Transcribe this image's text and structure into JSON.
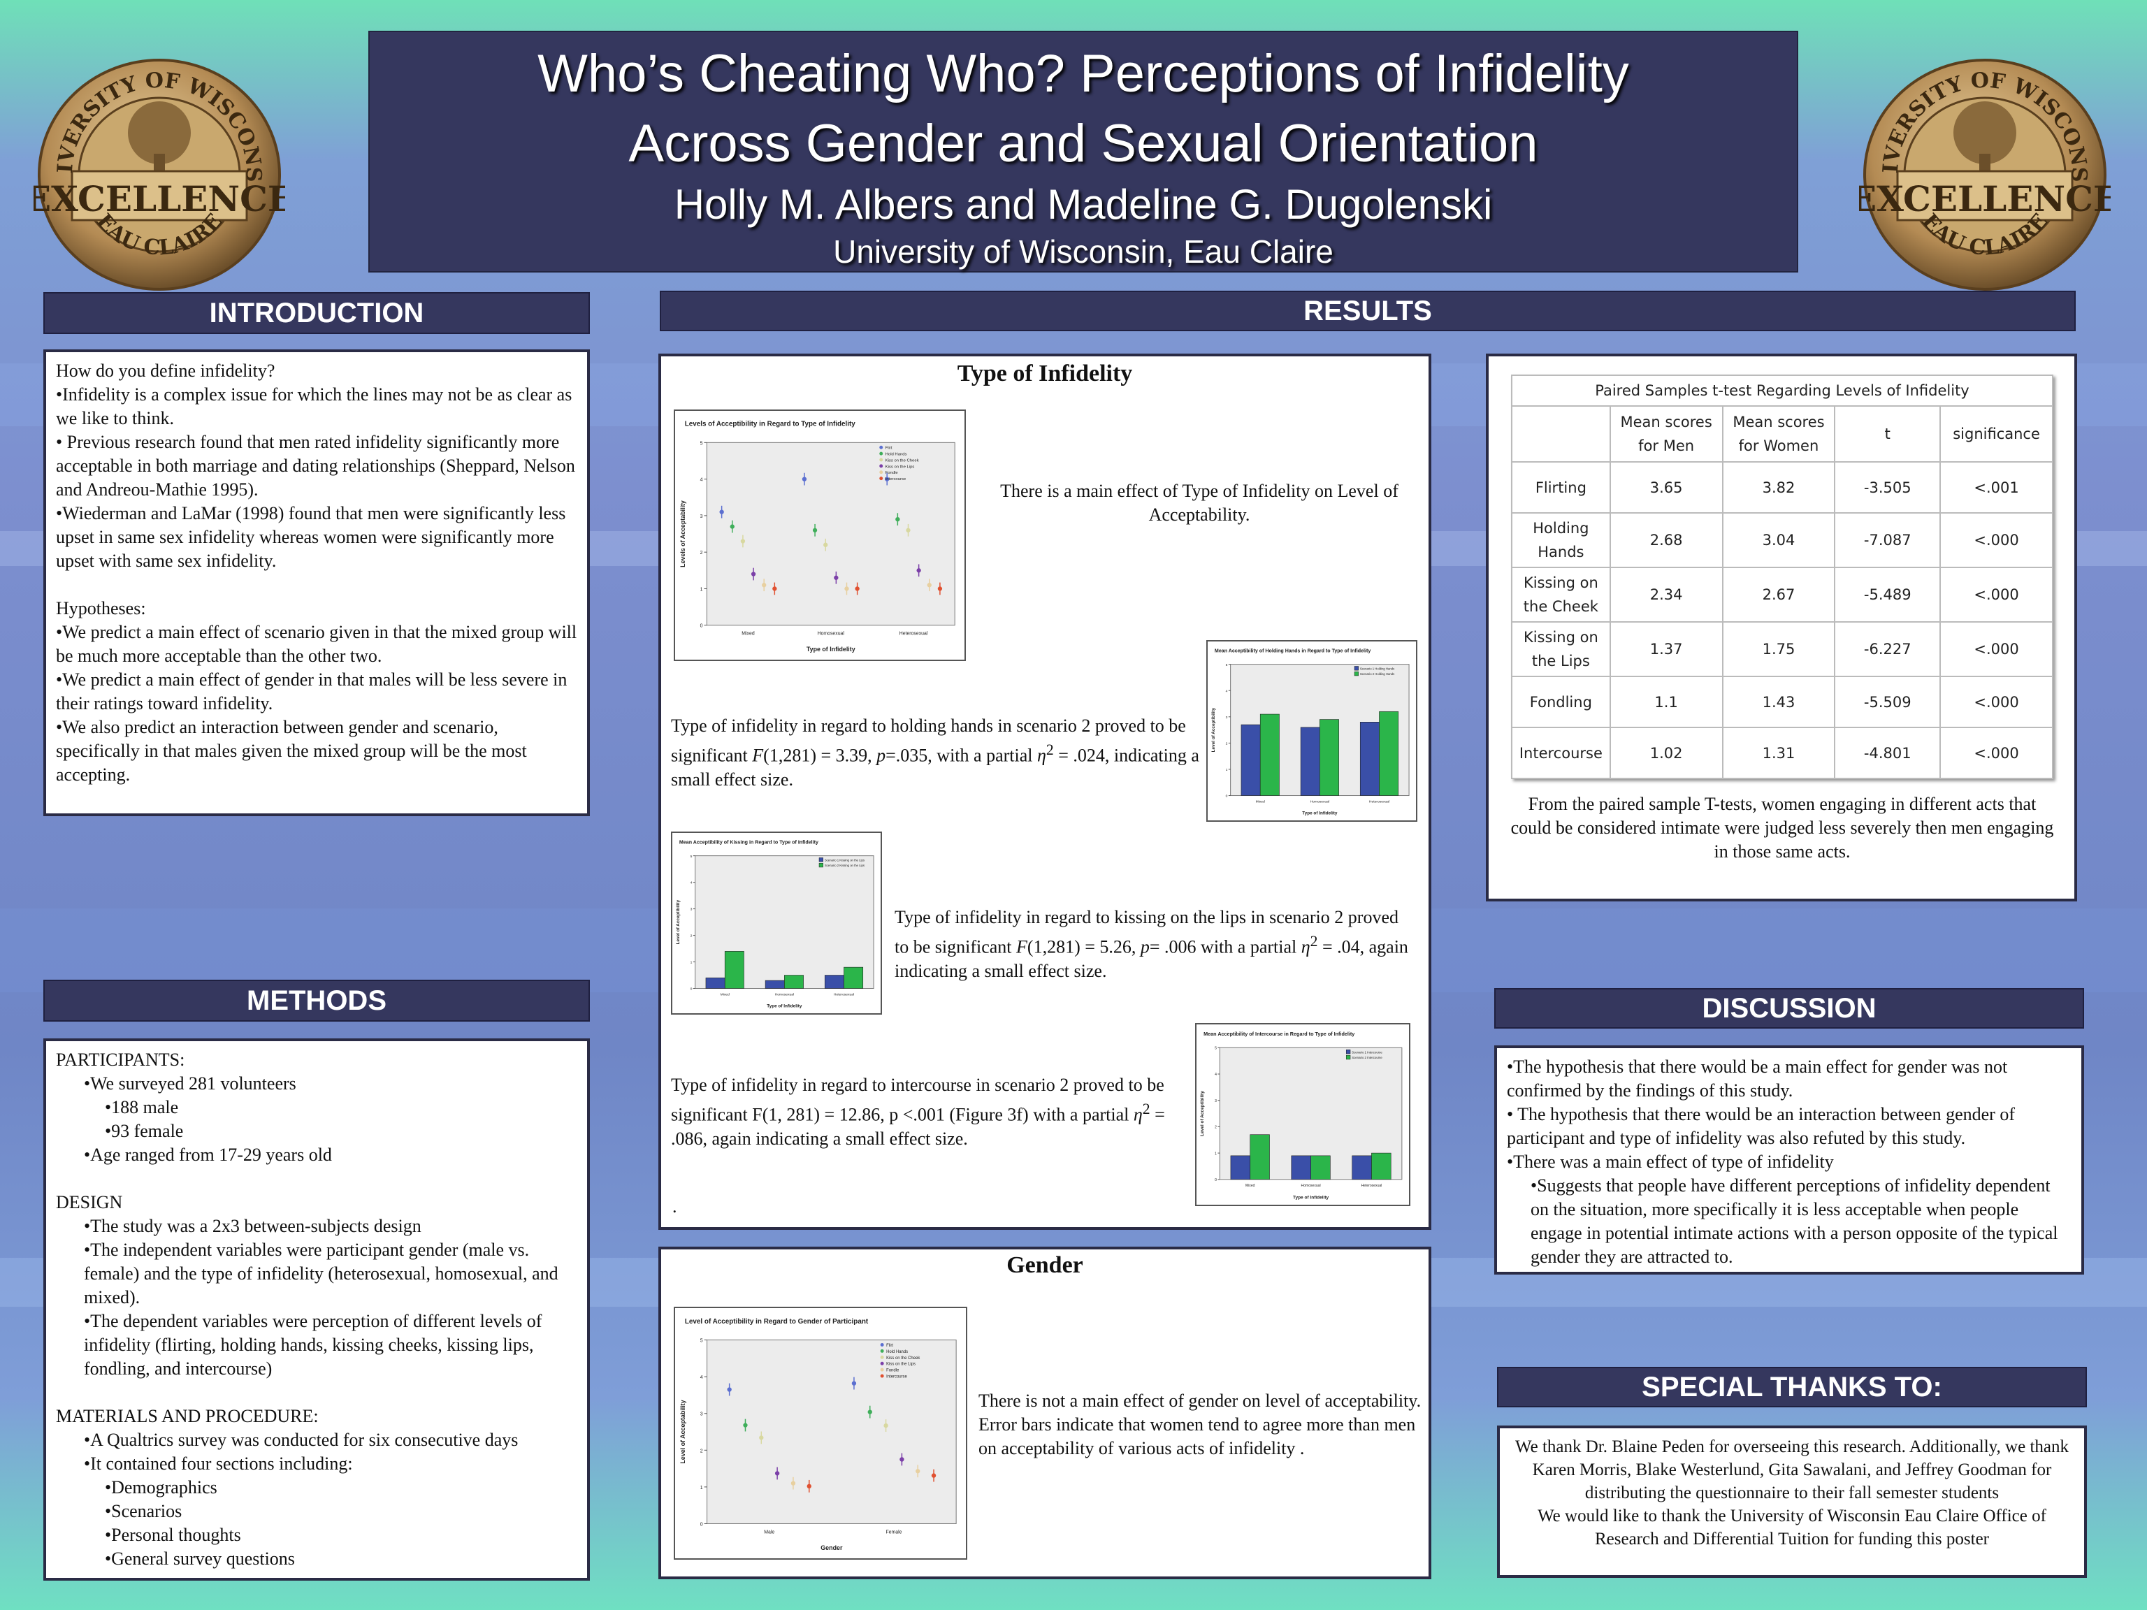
{
  "header": {
    "title_line1": "Who’s Cheating Who? Perceptions of Infidelity",
    "title_line2": "Across Gender and Sexual Orientation",
    "authors": "Holly M. Albers and Madeline G. Dugolenski",
    "institution": "University of Wisconsin, Eau Claire",
    "seal": {
      "top": "UNIVERSITY OF WISCONSIN",
      "middle": "EXCELLENCE",
      "bottom": "EAU CLAIRE"
    }
  },
  "colors": {
    "header_bg": "#35375e",
    "bar_blue": "#3a4fa8",
    "bar_green": "#2bb54a"
  },
  "introduction": {
    "heading": "INTRODUCTION",
    "lines": [
      "How do you define infidelity?",
      "•Infidelity is a complex issue for which the lines may not be as clear as we like to think.",
      "• Previous research found that men rated infidelity significantly more acceptable in both marriage and dating relationships (Sheppard, Nelson and Andreou-Mathie 1995).",
      "•Wiederman and LaMar (1998) found that men were significantly less upset in same sex infidelity whereas women were significantly more upset with same sex infidelity.",
      "",
      "Hypotheses:",
      "•We predict a main effect of scenario given in that the mixed group will be much more acceptable than the other two.",
      "•We predict a main effect of gender in that males will be less severe in their ratings toward infidelity.",
      "•We also predict an interaction between gender and scenario, specifically in that males given the mixed group will be the most accepting."
    ]
  },
  "methods": {
    "heading": "METHODS",
    "participants_title": "PARTICIPANTS:",
    "surveyed": "•We surveyed 281 volunteers",
    "male": "•188 male",
    "female": "•93 female",
    "age": "•Age ranged from 17-29 years old",
    "design_title": "DESIGN",
    "design_1": "•The study was a 2x3 between-subjects design",
    "design_2": "•The independent variables were participant gender (male vs. female) and the type of infidelity (heterosexual, homosexual, and mixed).",
    "design_3": "•The dependent variables were perception of different levels of infidelity (flirting, holding hands, kissing cheeks, kissing lips, fondling, and intercourse)",
    "materials_title": "MATERIALS AND PROCEDURE:",
    "materials_1": "•A Qualtrics survey was conducted for six consecutive days",
    "materials_2": "•It contained four sections including:",
    "sections": [
      "•Demographics",
      "•Scenarios",
      "•Personal thoughts",
      "•General survey questions"
    ]
  },
  "results": {
    "heading": "RESULTS",
    "type_title": "Type of Infidelity",
    "main_effect": "There is a main effect of Type of Infidelity on Level of Acceptability.",
    "holding_text_a": "Type of infidelity  in regard to holding hands in scenario 2 proved to be significant ",
    "holding_F": "F",
    "holding_text_b": "(1,281) = 3.39, ",
    "holding_p": "p",
    "holding_text_c": "=.035, with a partial ",
    "holding_eta": "η",
    "holding_text_d": " = .024, indicating a small effect size.",
    "kissing_text_a": "Type of infidelity in regard to kissing on the lips in scenario 2 proved to be significant  ",
    "kissing_F": "F",
    "kissing_text_b": "(1,281) = 5.26, ",
    "kissing_p": "p",
    "kissing_text_c": "= .006 with a partial ",
    "kissing_eta": "η",
    "kissing_text_d": " = .04, again indicating a small effect size.",
    "intercourse_text_a": "Type of infidelity in regard to intercourse in scenario 2 proved to be significant F(1, 281) = 12.86, p <.001 (Figure 3f) with a partial ",
    "intercourse_eta": "η",
    "intercourse_text_b": " = .086, again indicating a small effect size.",
    "dot": ".",
    "sup2": "2",
    "gender_title": "Gender",
    "gender_text": "There is not a main effect of  gender on level of acceptability. Error bars indicate that women tend to agree more than men on acceptability of various acts of infidelity ."
  },
  "chart_data": [
    {
      "type": "scatter",
      "title": "Levels of Acceptibility in Regard to Type of Infidelity",
      "xlabel": "Type of Infidelity",
      "ylabel": "Levels of Acceptability",
      "categories": [
        "Mixed",
        "Homosexual",
        "Heterosexual"
      ],
      "legend": [
        "Flirt",
        "Hold Hands",
        "Kiss on the Cheek",
        "Kiss on the Lips",
        "Fondle",
        "Intercourse"
      ],
      "legend_position": "top-right",
      "ylim": [
        0,
        5
      ],
      "series": [
        {
          "name": "Flirt",
          "values": [
            3.1,
            4.0,
            4.0
          ],
          "color": "#5b6fd0"
        },
        {
          "name": "Hold Hands",
          "values": [
            2.7,
            2.6,
            2.9
          ],
          "color": "#3fae5a"
        },
        {
          "name": "Kiss on the Cheek",
          "values": [
            2.3,
            2.2,
            2.6
          ],
          "color": "#d8d8a0"
        },
        {
          "name": "Kiss on the Lips",
          "values": [
            1.4,
            1.3,
            1.5
          ],
          "color": "#7b3fa8"
        },
        {
          "name": "Fondle",
          "values": [
            1.1,
            1.0,
            1.1
          ],
          "color": "#e8d0a0"
        },
        {
          "name": "Intercourse",
          "values": [
            1.0,
            1.0,
            1.0
          ],
          "color": "#e05030"
        }
      ]
    },
    {
      "type": "bar",
      "title": "Mean Acceptibility of Holding Hands in Regard to Type of Infidelity",
      "xlabel": "Type of Infidelity",
      "ylabel": "Level of Acceptibility",
      "categories": [
        "Mixed",
        "Homosexual",
        "Heterosexual"
      ],
      "ylim": [
        0,
        5
      ],
      "legend_position": "top-right",
      "series": [
        {
          "name": "Scenario 1 Holding Hands",
          "values": [
            2.7,
            2.6,
            2.8
          ],
          "color": "#3a4fa8"
        },
        {
          "name": "Scenario 2 Holding Hands",
          "values": [
            3.1,
            2.9,
            3.2
          ],
          "color": "#2bb54a"
        }
      ]
    },
    {
      "type": "bar",
      "title": "Mean Acceptibility of Kissing in Regard to Type of Infidelity",
      "xlabel": "Type of Infidelity",
      "ylabel": "Level of Acceptibility",
      "categories": [
        "Mixed",
        "Homosexual",
        "Heterosexual"
      ],
      "ylim": [
        0,
        5
      ],
      "legend_position": "top-right",
      "series": [
        {
          "name": "Scenario 1 Kissing on the Lips",
          "values": [
            0.4,
            0.3,
            0.5
          ],
          "color": "#3a4fa8"
        },
        {
          "name": "Scenario 2 Kissing on the Lips",
          "values": [
            1.4,
            0.5,
            0.8
          ],
          "color": "#2bb54a"
        }
      ]
    },
    {
      "type": "bar",
      "title": "Mean Acceptibility of Intercourse in Regard to Type of Infidelity",
      "xlabel": "Type of Infidelity",
      "ylabel": "Level of Acceptibility",
      "categories": [
        "Mixed",
        "Homosexual",
        "Heterosexual"
      ],
      "ylim": [
        0,
        5
      ],
      "legend_position": "top-right",
      "series": [
        {
          "name": "Scenario 1 Intercourse",
          "values": [
            0.9,
            0.9,
            0.9
          ],
          "color": "#3a4fa8"
        },
        {
          "name": "Scenario 2 Intercourse",
          "values": [
            1.7,
            0.9,
            1.0
          ],
          "color": "#2bb54a"
        }
      ]
    },
    {
      "type": "scatter",
      "title": "Level of Acceptibility in Regard to Gender of Participant",
      "xlabel": "Gender",
      "ylabel": "Level of Acceptability",
      "categories": [
        "Male",
        "Female"
      ],
      "legend": [
        "Flirt",
        "Hold Hands",
        "Kiss on the Cheek",
        "Kiss on the Lips",
        "Fondle",
        "Intercourse"
      ],
      "legend_position": "top-right",
      "ylim": [
        0,
        5
      ],
      "series": [
        {
          "name": "Flirt",
          "values": [
            3.65,
            3.82
          ],
          "color": "#5b6fd0"
        },
        {
          "name": "Hold Hands",
          "values": [
            2.68,
            3.04
          ],
          "color": "#3fae5a"
        },
        {
          "name": "Kiss on the Cheek",
          "values": [
            2.34,
            2.67
          ],
          "color": "#d8d8a0"
        },
        {
          "name": "Kiss on the Lips",
          "values": [
            1.37,
            1.75
          ],
          "color": "#7b3fa8"
        },
        {
          "name": "Fondle",
          "values": [
            1.1,
            1.43
          ],
          "color": "#e8d0a0"
        },
        {
          "name": "Intercourse",
          "values": [
            1.02,
            1.31
          ],
          "color": "#e05030"
        }
      ]
    },
    {
      "type": "table",
      "title": "Paired Samples t-test Regarding Levels of Infidelity",
      "columns": [
        "",
        "Mean scores for Men",
        "Mean scores for Women",
        "t",
        "significance"
      ],
      "rows": [
        [
          "Flirting",
          "3.65",
          "3.82",
          "-3.505",
          "<.001"
        ],
        [
          "Holding Hands",
          "2.68",
          "3.04",
          "-7.087",
          "<.000"
        ],
        [
          "Kissing on the Cheek",
          "2.34",
          "2.67",
          "-5.489",
          "<.000"
        ],
        [
          "Kissing on the Lips",
          "1.37",
          "1.75",
          "-6.227",
          "<.000"
        ],
        [
          "Fondling",
          "1.1",
          "1.43",
          "-5.509",
          "<.000"
        ],
        [
          "Intercourse",
          "1.02",
          "1.31",
          "-4.801",
          "<.000"
        ]
      ]
    }
  ],
  "table_caption": "From the paired sample T-tests, women engaging in different acts that could be considered intimate were judged less severely then men engaging in those same acts.",
  "discussion": {
    "heading": "DISCUSSION",
    "lines": [
      "•The hypothesis that there would be a main effect for gender was not confirmed by the findings of this study.",
      "• The hypothesis that there would be an interaction between gender of participant and type of infidelity was also refuted by this study.",
      "•There was a main effect of type of infidelity"
    ],
    "sub": "•Suggests that people have different perceptions of infidelity dependent on the situation, more specifically it is less acceptable when people engage in potential intimate actions with a person opposite of the typical gender they are attracted to."
  },
  "thanks": {
    "heading": "SPECIAL THANKS TO:",
    "p1": "We thank Dr. Blaine Peden for overseeing this research. Additionally, we thank Karen Morris, Blake Westerlund, Gita Sawalani, and Jeffrey Goodman for distributing the questionnaire to their fall semester students",
    "p2": "We would like to thank the University of Wisconsin Eau Claire Office of Research and Differential Tuition for funding this poster"
  }
}
